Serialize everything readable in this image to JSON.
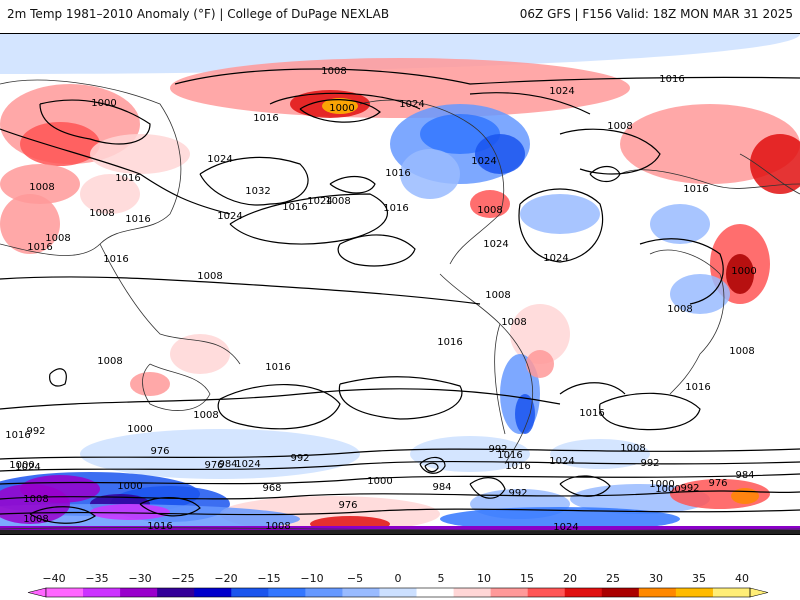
{
  "header": {
    "left": "2m Temp 1981–2010 Anomaly (°F) | College of DuPage NEXLAB",
    "right": "06Z GFS | F156 Valid: 18Z MON MAR 31 2025"
  },
  "isobar_labels": [
    "1008",
    "1016",
    "1000",
    "1000",
    "1016",
    "1024",
    "1024",
    "1024",
    "1016",
    "1008",
    "1016",
    "1024",
    "1008",
    "1016",
    "1024",
    "1032",
    "1024",
    "1016",
    "1008",
    "1016",
    "1008",
    "1016",
    "1024",
    "1008",
    "1008",
    "1000",
    "1008",
    "1008",
    "1008",
    "1016",
    "1008",
    "1016",
    "1008",
    "1016",
    "1016",
    "1008",
    "1024",
    "1016",
    "1008",
    "1000",
    "992",
    "976",
    "984",
    "992",
    "968",
    "1000",
    "984",
    "976",
    "992",
    "1016",
    "1024",
    "1016",
    "1000",
    "1008",
    "992",
    "1000",
    "992",
    "976",
    "984",
    "992",
    "1008",
    "1000",
    "976",
    "1024",
    "1008",
    "1000",
    "1016",
    "1024",
    "1016",
    "1024",
    "1008",
    "1016"
  ],
  "colorbar": {
    "ticks": [
      "−40",
      "−35",
      "−30",
      "−25",
      "−20",
      "−15",
      "−10",
      "−5",
      "0",
      "5",
      "10",
      "15",
      "20",
      "25",
      "30",
      "35",
      "40"
    ],
    "colors": [
      "#ff66ff",
      "#cc33ff",
      "#9900cc",
      "#330099",
      "#0000cc",
      "#1a55ee",
      "#3377ff",
      "#6699ff",
      "#99bbff",
      "#cce0ff",
      "#ffffff",
      "#ffd6d6",
      "#ff9999",
      "#ff5555",
      "#e01010",
      "#aa0000",
      "#ff8800",
      "#ffbb00",
      "#ffee77"
    ]
  },
  "colors": {
    "contour": "#000000",
    "coast": "#333333",
    "warm": "#ff5555",
    "cold": "#3377ff"
  }
}
